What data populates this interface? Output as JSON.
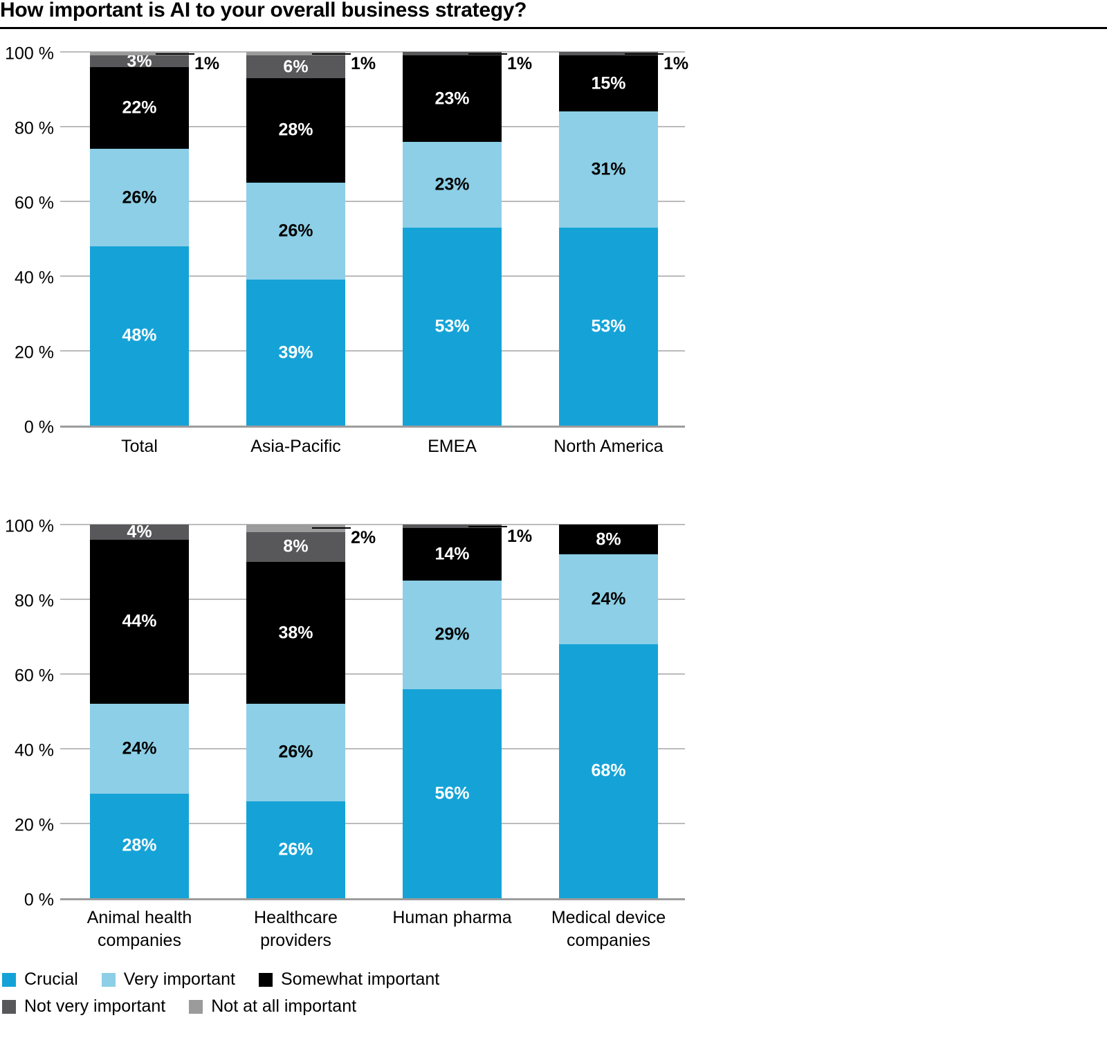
{
  "title": "How important is AI to your overall business strategy?",
  "colors": {
    "background": "#FFFFFF",
    "text": "#000000",
    "title_rule": "#000000",
    "grid": "#BBBBBB",
    "axis_baseline": "#9C9C9C",
    "callout_line": "#000000"
  },
  "chart_data": {
    "type": "bar",
    "stacked": true,
    "unit": "%",
    "title": "How important is AI to your overall business strategy?",
    "ylim": [
      0,
      100
    ],
    "grid": true,
    "legend_position": "bottom-left",
    "y_tick_labels": [
      "0 %",
      "20 %",
      "40 %",
      "60 %",
      "80 %",
      "100 %"
    ],
    "series_names": [
      "Crucial",
      "Very important",
      "Somewhat important",
      "Not very important",
      "Not at all important"
    ],
    "series_colors": [
      "#15A3D7",
      "#8CCFE6",
      "#000000",
      "#58585B",
      "#9B9B9B"
    ],
    "series_label_text_colors": [
      "#FFFFFF",
      "#000000",
      "#FFFFFF",
      "#FFFFFF",
      "#FFFFFF"
    ],
    "panels": [
      {
        "categories": [
          {
            "label": "Total",
            "lines": [
              "Total"
            ]
          },
          {
            "label": "Asia-Pacific",
            "lines": [
              "Asia-Pacific"
            ]
          },
          {
            "label": "EMEA",
            "lines": [
              "EMEA"
            ]
          },
          {
            "label": "North America",
            "lines": [
              "North America"
            ]
          }
        ],
        "series": [
          {
            "name": "Crucial",
            "values": [
              48,
              39,
              53,
              53
            ]
          },
          {
            "name": "Very important",
            "values": [
              26,
              26,
              23,
              31
            ]
          },
          {
            "name": "Somewhat important",
            "values": [
              22,
              28,
              23,
              15
            ]
          },
          {
            "name": "Not very important",
            "values": [
              3,
              6,
              1,
              1
            ]
          },
          {
            "name": "Not at all important",
            "values": [
              1,
              1,
              0,
              0
            ]
          }
        ],
        "callouts": [
          "1%",
          "1%",
          "1%",
          "1%"
        ]
      },
      {
        "categories": [
          {
            "label": "Animal health companies",
            "lines": [
              "Animal health",
              "companies"
            ]
          },
          {
            "label": "Healthcare providers",
            "lines": [
              "Healthcare",
              "providers"
            ]
          },
          {
            "label": "Human pharma",
            "lines": [
              "Human pharma"
            ]
          },
          {
            "label": "Medical device companies",
            "lines": [
              "Medical device",
              "companies"
            ]
          }
        ],
        "series": [
          {
            "name": "Crucial",
            "values": [
              28,
              26,
              56,
              68
            ]
          },
          {
            "name": "Very important",
            "values": [
              24,
              26,
              29,
              24
            ]
          },
          {
            "name": "Somewhat important",
            "values": [
              44,
              38,
              14,
              8
            ]
          },
          {
            "name": "Not very important",
            "values": [
              4,
              8,
              1,
              0
            ]
          },
          {
            "name": "Not at all important",
            "values": [
              0,
              2,
              0,
              0
            ]
          }
        ],
        "callouts": [
          null,
          "2%",
          "1%",
          null
        ]
      }
    ]
  },
  "legend": {
    "row_series_indices": [
      [
        0,
        1,
        2
      ],
      [
        3,
        4
      ]
    ]
  }
}
